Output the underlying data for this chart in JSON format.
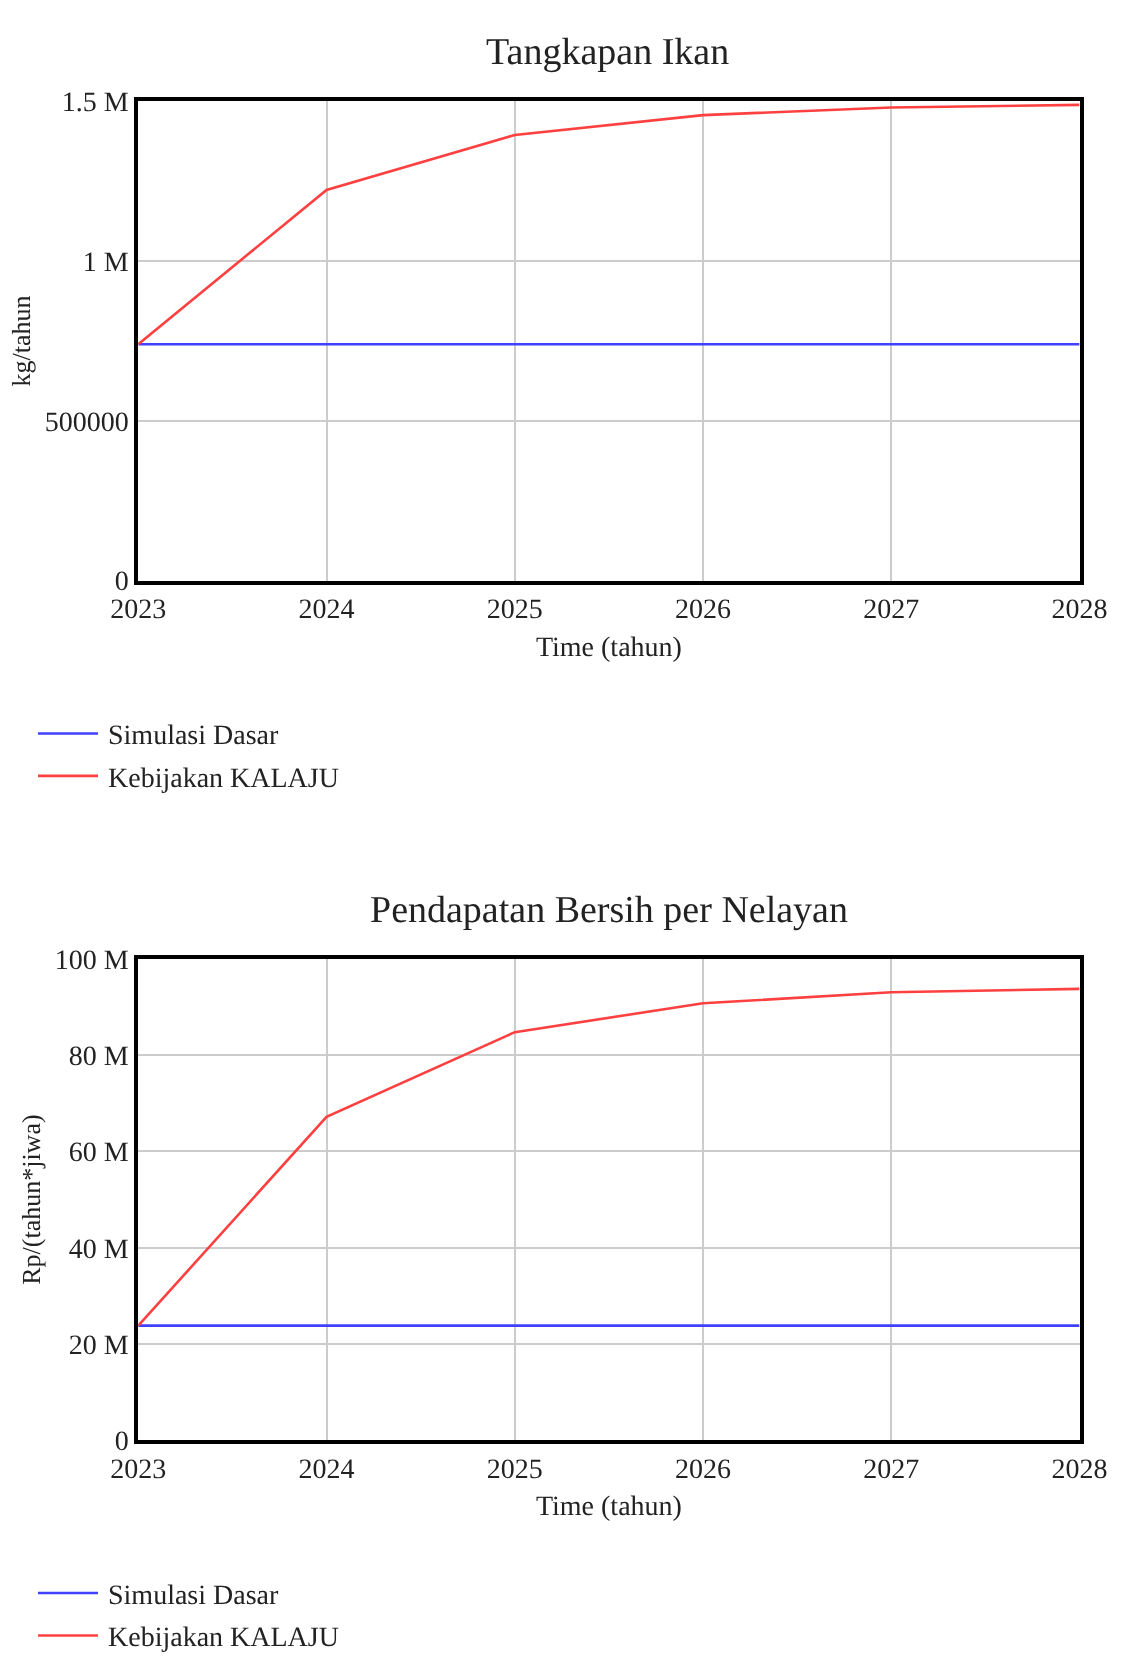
{
  "chart_data": [
    {
      "type": "line",
      "title": "Tangkapan Ikan",
      "xlabel": "Time (tahun)",
      "ylabel": "kg/tahun",
      "x": [
        2023,
        2024,
        2025,
        2026,
        2027,
        2028
      ],
      "xlim": [
        2023,
        2028
      ],
      "xticks": [
        2023,
        2024,
        2025,
        2026,
        2027,
        2028
      ],
      "ylim": [
        0,
        1500000
      ],
      "yticks": [
        {
          "value": 0,
          "label": "0"
        },
        {
          "value": 500000,
          "label": "500000"
        },
        {
          "value": 1000000,
          "label": "1 M"
        },
        {
          "value": 1500000,
          "label": "1.5 M"
        }
      ],
      "grid": true,
      "legend": "bottom",
      "series": [
        {
          "name": "Simulasi Dasar",
          "color": "#4040ff",
          "values": [
            740000,
            740000,
            740000,
            740000,
            740000,
            740000
          ]
        },
        {
          "name": "Kebijakan KALAJU",
          "color": "#ff4040",
          "values": [
            740000,
            1223000,
            1395000,
            1457000,
            1481000,
            1489000
          ]
        }
      ]
    },
    {
      "type": "line",
      "title": "Pendapatan Bersih per Nelayan",
      "xlabel": "Time (tahun)",
      "ylabel": "Rp/(tahun*jiwa)",
      "x": [
        2023,
        2024,
        2025,
        2026,
        2027,
        2028
      ],
      "xlim": [
        2023,
        2028
      ],
      "xticks": [
        2023,
        2024,
        2025,
        2026,
        2027,
        2028
      ],
      "ylim": [
        0,
        100000000
      ],
      "yticks": [
        {
          "value": 0,
          "label": "0"
        },
        {
          "value": 20000000,
          "label": "20 M"
        },
        {
          "value": 40000000,
          "label": "40 M"
        },
        {
          "value": 60000000,
          "label": "60 M"
        },
        {
          "value": 80000000,
          "label": "80 M"
        },
        {
          "value": 100000000,
          "label": "100 M"
        }
      ],
      "grid": true,
      "legend": "bottom",
      "series": [
        {
          "name": "Simulasi Dasar",
          "color": "#4040ff",
          "values": [
            23800000,
            23800000,
            23800000,
            23800000,
            23800000,
            23800000
          ]
        },
        {
          "name": "Kebijakan KALAJU",
          "color": "#ff4040",
          "values": [
            23800000,
            67200000,
            84800000,
            90800000,
            93100000,
            93800000
          ]
        }
      ]
    }
  ]
}
